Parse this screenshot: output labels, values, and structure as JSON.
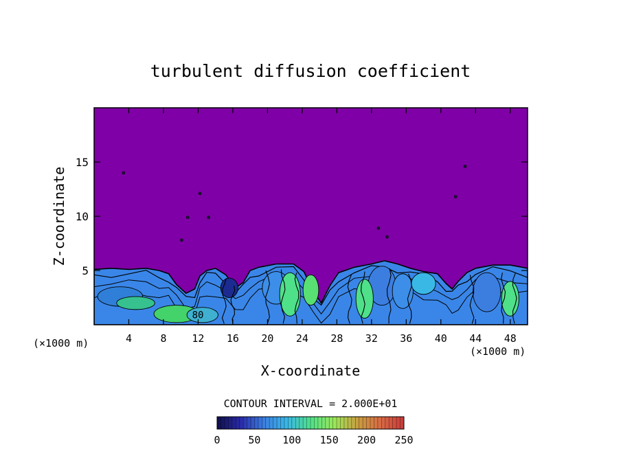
{
  "chart_data": {
    "type": "heatmap",
    "title": "turbulent diffusion coefficient",
    "xlabel": "X-coordinate",
    "ylabel": "Z-coordinate",
    "x_unit_left": "(×1000 m)",
    "x_unit_right": "(×1000 m)",
    "xlim": [
      0,
      50
    ],
    "ylim": [
      0,
      20
    ],
    "x_ticks": [
      4,
      8,
      12,
      16,
      20,
      24,
      28,
      32,
      36,
      40,
      44,
      48
    ],
    "y_ticks": [
      5,
      10,
      15
    ],
    "contour_interval_text": "CONTOUR INTERVAL = 2.000E+01",
    "colorbar": {
      "range": [
        0,
        250
      ],
      "ticks": [
        0,
        50,
        100,
        150,
        200,
        250
      ],
      "colors": [
        "#10104a",
        "#2a2aa8",
        "#3c7ee0",
        "#39b8e6",
        "#4fe08a",
        "#9ae85a",
        "#c8a040",
        "#d86a44",
        "#c83a3a"
      ]
    },
    "background_value_color": "#7f00a6",
    "contour_label": "80",
    "contour_label_position": {
      "x": 11.3,
      "y": 0.6
    },
    "boundary_layer_top": [
      [
        0,
        5.1
      ],
      [
        2,
        5.2
      ],
      [
        4,
        5.1
      ],
      [
        6,
        5.2
      ],
      [
        7.5,
        5.0
      ],
      [
        8.6,
        4.7
      ],
      [
        9.5,
        3.7
      ],
      [
        10.6,
        2.9
      ],
      [
        11.6,
        3.3
      ],
      [
        12.2,
        4.5
      ],
      [
        13.0,
        5.0
      ],
      [
        14.0,
        5.2
      ],
      [
        15.2,
        4.6
      ],
      [
        16.3,
        3.4
      ],
      [
        17.2,
        3.9
      ],
      [
        18.0,
        5.0
      ],
      [
        19.0,
        5.3
      ],
      [
        21.0,
        5.6
      ],
      [
        23.0,
        5.6
      ],
      [
        24.2,
        4.9
      ],
      [
        25.3,
        3.1
      ],
      [
        26.2,
        2.0
      ],
      [
        27.2,
        3.6
      ],
      [
        28.2,
        4.8
      ],
      [
        30.0,
        5.3
      ],
      [
        32.0,
        5.6
      ],
      [
        33.5,
        5.9
      ],
      [
        35.0,
        5.6
      ],
      [
        36.5,
        5.2
      ],
      [
        38.0,
        4.9
      ],
      [
        39.6,
        4.7
      ],
      [
        40.6,
        3.8
      ],
      [
        41.3,
        3.3
      ],
      [
        42.0,
        4.0
      ],
      [
        43.0,
        4.8
      ],
      [
        44.0,
        5.2
      ],
      [
        46.0,
        5.5
      ],
      [
        48.0,
        5.5
      ],
      [
        50.0,
        5.2
      ]
    ],
    "warm_patches": [
      {
        "x": 3.0,
        "y": 2.6,
        "rx": 2.6,
        "ry": 0.9,
        "color": "#2f7fd8"
      },
      {
        "x": 4.8,
        "y": 2.0,
        "rx": 2.2,
        "ry": 0.6,
        "color": "#36c18e"
      },
      {
        "x": 9.5,
        "y": 1.0,
        "rx": 2.6,
        "ry": 0.8,
        "color": "#44d26a"
      },
      {
        "x": 12.5,
        "y": 0.9,
        "rx": 1.8,
        "ry": 0.7,
        "color": "#3fb0d0"
      },
      {
        "x": 15.6,
        "y": 3.4,
        "rx": 1.0,
        "ry": 0.9,
        "color": "#1b2b90"
      },
      {
        "x": 21.0,
        "y": 3.4,
        "rx": 1.6,
        "ry": 1.5,
        "color": "#3c8ee8"
      },
      {
        "x": 22.6,
        "y": 2.8,
        "rx": 1.2,
        "ry": 2.0,
        "color": "#4fe08a"
      },
      {
        "x": 25.0,
        "y": 3.2,
        "rx": 0.9,
        "ry": 1.4,
        "color": "#58e072"
      },
      {
        "x": 33.2,
        "y": 3.6,
        "rx": 1.6,
        "ry": 1.8,
        "color": "#3c7ee0"
      },
      {
        "x": 31.2,
        "y": 2.4,
        "rx": 1.0,
        "ry": 1.8,
        "color": "#4fe08a"
      },
      {
        "x": 35.6,
        "y": 3.1,
        "rx": 1.2,
        "ry": 1.6,
        "color": "#3c8ee8"
      },
      {
        "x": 38.0,
        "y": 3.8,
        "rx": 1.4,
        "ry": 1.0,
        "color": "#39b8e6"
      },
      {
        "x": 45.3,
        "y": 3.0,
        "rx": 1.6,
        "ry": 1.8,
        "color": "#3c7ee0"
      },
      {
        "x": 48.0,
        "y": 2.4,
        "rx": 1.0,
        "ry": 1.6,
        "color": "#4fe08a"
      }
    ],
    "isolated_spots": [
      [
        10.8,
        9.9
      ],
      [
        13.2,
        9.9
      ],
      [
        10.1,
        7.8
      ],
      [
        12.2,
        12.1
      ],
      [
        3.4,
        14.0
      ],
      [
        42.8,
        14.6
      ],
      [
        41.7,
        11.8
      ],
      [
        32.8,
        8.9
      ],
      [
        33.8,
        8.1
      ]
    ]
  }
}
